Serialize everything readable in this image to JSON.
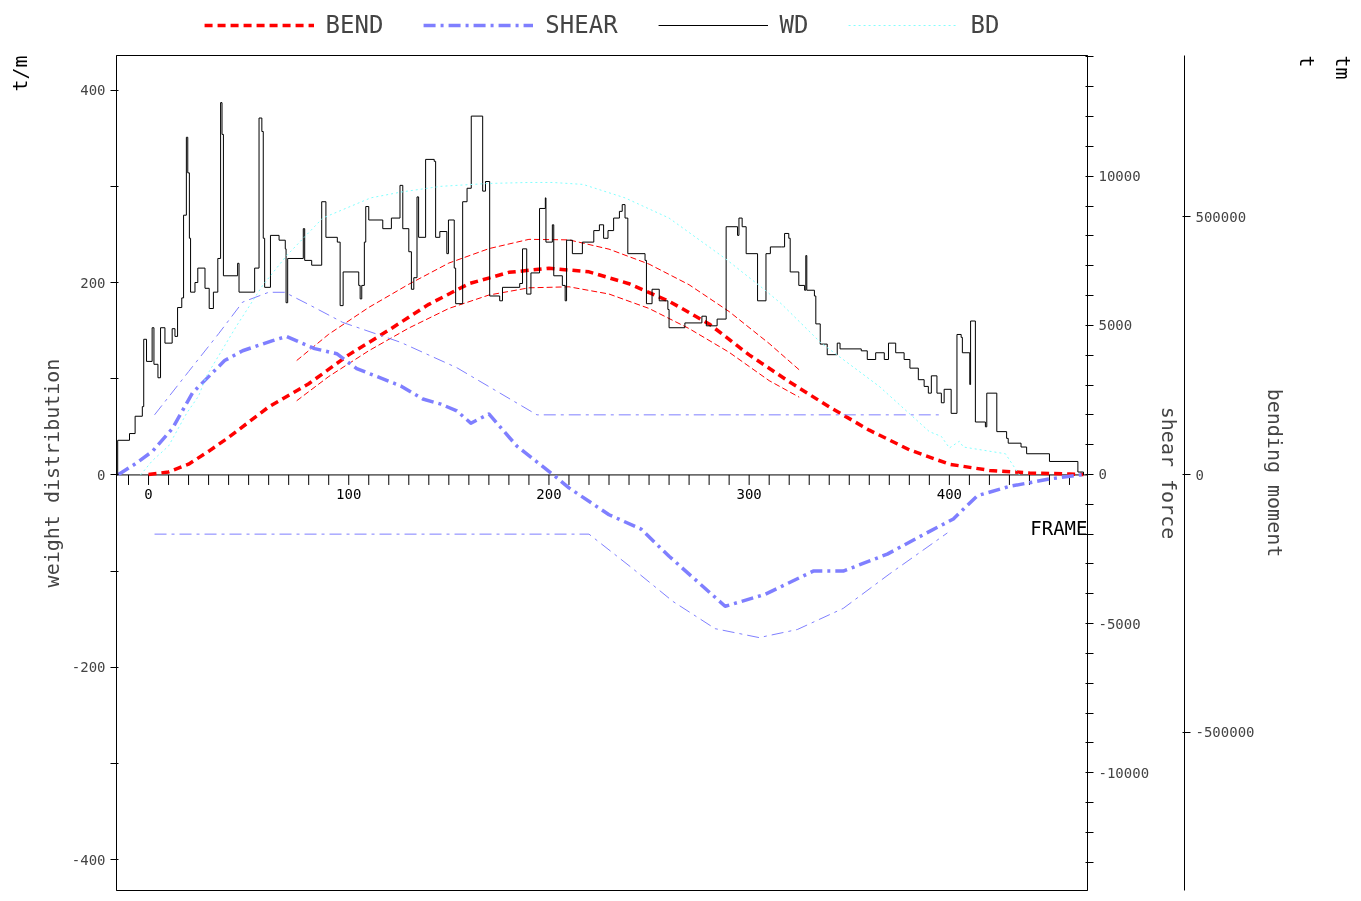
{
  "chart_data": {
    "type": "line",
    "ylabel": "weight distribution",
    "y2label": "shear force",
    "y3label": "bending moment",
    "xlabel": "FRAME",
    "annotations": [
      "t/m",
      "t",
      "tm"
    ],
    "legend": "top",
    "xlim": [
      -16,
      469
    ],
    "ylim": [
      -432,
      436
    ],
    "y2lim": [
      -13950,
      14050
    ],
    "y3lim": [
      -806600,
      812500
    ],
    "xticks": [
      {
        "value": -10,
        "label": null
      },
      0,
      {
        "value": 10,
        "label": null
      },
      {
        "value": 20,
        "label": null
      },
      {
        "value": 30,
        "label": null
      },
      {
        "value": 40,
        "label": null
      },
      {
        "value": 50,
        "label": null
      },
      {
        "value": 60,
        "label": null
      },
      {
        "value": 70,
        "label": null
      },
      {
        "value": 80,
        "label": null
      },
      {
        "value": 90,
        "label": null
      },
      100,
      {
        "value": 110,
        "label": null
      },
      {
        "value": 120,
        "label": null
      },
      {
        "value": 130,
        "label": null
      },
      {
        "value": 140,
        "label": null
      },
      {
        "value": 150,
        "label": null
      },
      {
        "value": 160,
        "label": null
      },
      {
        "value": 170,
        "label": null
      },
      {
        "value": 180,
        "label": null
      },
      {
        "value": 190,
        "label": null
      },
      200,
      {
        "value": 210,
        "label": null
      },
      {
        "value": 220,
        "label": null
      },
      {
        "value": 230,
        "label": null
      },
      {
        "value": 240,
        "label": null
      },
      {
        "value": 250,
        "label": null
      },
      {
        "value": 260,
        "label": null
      },
      {
        "value": 270,
        "label": null
      },
      {
        "value": 280,
        "label": null
      },
      {
        "value": 290,
        "label": null
      },
      300,
      {
        "value": 310,
        "label": null
      },
      {
        "value": 320,
        "label": null
      },
      {
        "value": 330,
        "label": null
      },
      {
        "value": 340,
        "label": null
      },
      {
        "value": 350,
        "label": null
      },
      {
        "value": 360,
        "label": null
      },
      {
        "value": 370,
        "label": null
      },
      {
        "value": 380,
        "label": null
      },
      {
        "value": 390,
        "label": null
      },
      400,
      {
        "value": 410,
        "label": null
      },
      {
        "value": 420,
        "label": null
      },
      {
        "value": 430,
        "label": null
      },
      {
        "value": 440,
        "label": null
      },
      {
        "value": 450,
        "label": null
      },
      {
        "value": 460,
        "label": null
      }
    ],
    "yticks": [
      -400,
      {
        "value": -300,
        "label": null
      },
      -200,
      {
        "value": -100,
        "label": null
      },
      0,
      {
        "value": 100,
        "label": null
      },
      200,
      {
        "value": 300,
        "label": null
      },
      400
    ],
    "y2ticks": [
      {
        "value": -13000,
        "label": null
      },
      {
        "value": -12000,
        "label": null
      },
      {
        "value": -11000,
        "label": null
      },
      -10000,
      {
        "value": -9000,
        "label": null
      },
      {
        "value": -8000,
        "label": null
      },
      {
        "value": -7000,
        "label": null
      },
      {
        "value": -6000,
        "label": null
      },
      -5000,
      {
        "value": -4000,
        "label": null
      },
      {
        "value": -3000,
        "label": null
      },
      {
        "value": -2000,
        "label": null
      },
      {
        "value": -1000,
        "label": null
      },
      0,
      {
        "value": 1000,
        "label": null
      },
      {
        "value": 2000,
        "label": null
      },
      {
        "value": 3000,
        "label": null
      },
      {
        "value": 4000,
        "label": null
      },
      5000,
      {
        "value": 6000,
        "label": null
      },
      {
        "value": 7000,
        "label": null
      },
      {
        "value": 8000,
        "label": null
      },
      {
        "value": 9000,
        "label": null
      },
      10000,
      {
        "value": 11000,
        "label": null
      },
      {
        "value": 12000,
        "label": null
      },
      {
        "value": 13000,
        "label": null
      },
      {
        "value": 14000,
        "label": null
      }
    ],
    "y3ticks": [
      -500000,
      0,
      500000
    ],
    "series": [
      {
        "name": "BEND",
        "color": "#ff0000",
        "axis": "y3",
        "line_style": "dashed",
        "x": [
          0,
          10,
          20,
          30,
          40,
          60,
          80,
          100,
          120,
          140,
          160,
          180,
          200,
          220,
          240,
          260,
          280,
          300,
          320,
          340,
          360,
          380,
          400,
          420,
          440,
          460,
          467
        ],
        "values": [
          0,
          5000,
          20000,
          45000,
          72000,
          131000,
          176000,
          232000,
          280000,
          330000,
          370000,
          392000,
          400000,
          393000,
          370000,
          336000,
          292000,
          232000,
          180000,
          131000,
          86000,
          48000,
          20000,
          8000,
          3000,
          1000,
          0
        ]
      },
      {
        "color": "#ff0000",
        "axis": "y3",
        "line_style": "dashed",
        "x": [
          74,
          90,
          110,
          130,
          150,
          170,
          190,
          210,
          230,
          250,
          270,
          290,
          310,
          325
        ],
        "values": [
          221000,
          272000,
          324000,
          369000,
          410000,
          438000,
          456000,
          455000,
          437000,
          408000,
          368000,
          316000,
          254000,
          203000
        ]
      },
      {
        "color": "#ff0000",
        "axis": "y3",
        "line_style": "dashed",
        "x": [
          74,
          90,
          110,
          130,
          150,
          170,
          190,
          210,
          230,
          250,
          270,
          290,
          310,
          325
        ],
        "values": [
          143000,
          190000,
          240000,
          284000,
          322000,
          348000,
          362000,
          364000,
          350000,
          322000,
          283000,
          237000,
          182000,
          150000
        ]
      },
      {
        "name": "SHEAR",
        "color": "#7f7fff",
        "axis": "y2",
        "line_style": "dashdot",
        "x": [
          -15,
          -7,
          2,
          12,
          22,
          38,
          47,
          62,
          69,
          83,
          94,
          104,
          126,
          137,
          146,
          154,
          161,
          170,
          184,
          202,
          210,
          230,
          246,
          260,
          288,
          308,
          332,
          347,
          369,
          385,
          402,
          414,
          430,
          450,
          467
        ],
        "values": [
          0,
          340,
          780,
          1550,
          2740,
          3820,
          4150,
          4490,
          4630,
          4220,
          4050,
          3550,
          2970,
          2530,
          2360,
          2130,
          1720,
          2030,
          950,
          0,
          -450,
          -1350,
          -1830,
          -2740,
          -4420,
          -4020,
          -3240,
          -3240,
          -2670,
          -2090,
          -1490,
          -710,
          -400,
          -150,
          0
        ]
      },
      {
        "color": "#7f7fff",
        "axis": "y2",
        "line_style": "dashdot",
        "x": [
          3,
          20,
          35,
          47,
          60,
          68,
          80,
          97,
          126,
          154,
          194,
          396
        ],
        "values": [
          2000,
          3450,
          4720,
          5780,
          6110,
          6110,
          5700,
          5100,
          4430,
          3580,
          2000,
          2000
        ]
      },
      {
        "color": "#7f7fff",
        "axis": "y2",
        "line_style": "dashdot",
        "x": [
          3,
          220,
          241,
          262,
          283,
          305,
          324,
          347,
          370,
          399
        ],
        "values": [
          -2000,
          -2000,
          -3110,
          -4260,
          -5170,
          -5470,
          -5200,
          -4490,
          -3340,
          -1960
        ]
      },
      {
        "name": "WD",
        "type": "step",
        "color": "#000000",
        "line_style": "solid",
        "x": [
          -16,
          -15.4,
          -9.5,
          -6.7,
          -3.1,
          -2.4,
          -1,
          1.8,
          2.7,
          4.7,
          6,
          8.2,
          11.8,
          13.2,
          14.5,
          16.6,
          17.5,
          18.9,
          19.6,
          20.4,
          21,
          23.2,
          24.6,
          28.2,
          30.3,
          32.4,
          34.6,
          36,
          36.7,
          37.4,
          44.5,
          45.2,
          53,
          55.2,
          56.6,
          57.3,
          58,
          60.9,
          65.2,
          68.3,
          68.7,
          69.5,
          77.3,
          78,
          81.5,
          86.5,
          88.6,
          94.3,
          95.7,
          97.2,
          105,
          105.7,
          106.5,
          107.8,
          108.5,
          110,
          117,
          121.3,
          125.6,
          127,
          130,
          131.3,
          132.5,
          134.1,
          134.9,
          138.4,
          142.7,
          143.4,
          145.5,
          149,
          149.8,
          152.7,
          153.4,
          156.9,
          159.1,
          161.2,
          166.9,
          168.3,
          170.4,
          175.4,
          176.8,
          185.4,
          186.8,
          188.9,
          191,
          195.3,
          198.2,
          198.5,
          201.7,
          202.4,
          206.7,
          208.1,
          208.8,
          211.7,
          216.7,
          222.4,
          225.2,
          227.3,
          229.5,
          232.3,
          235.2,
          236.6,
          238,
          239.4,
          248,
          248.7,
          251.5,
          255.1,
          259.4,
          260,
          267.9,
          276.4,
          278.6,
          284,
          288.5,
          294.2,
          294.9,
          296.5,
          298.5,
          304.2,
          308.4,
          310.6,
          316.2,
          317.7,
          319.8,
          320.5,
          324.8,
          327.7,
          328.3,
          328.8,
          332.6,
          333.3,
          335.5,
          339,
          344,
          345.4,
          356,
          359,
          363.2,
          367.5,
          369.6,
          373.2,
          377.4,
          380.3,
          384.5,
          387.4,
          389.5,
          391,
          393.8,
          396,
          397.4,
          400.9,
          403.8,
          405.9,
          406.5,
          410.2,
          410.6,
          413,
          418,
          418.7,
          423.7,
          428.6,
          429.4,
          435.8,
          438.6,
          450,
          464.2,
          467
        ],
        "values": [
          0,
          36,
          43,
          61,
          71,
          141,
          118,
          153,
          115,
          101,
          153,
          137,
          152,
          144,
          174,
          184,
          270,
          351,
          314,
          246,
          190,
          200,
          215,
          194,
          173,
          190,
          225,
          387,
          354,
          207,
          220,
          190,
          215,
          371,
          357,
          246,
          195,
          249,
          244,
          235,
          179,
          225,
          256,
          223,
          218,
          284,
          247,
          242,
          176,
          211,
          197,
          183,
          197,
          242,
          279,
          265,
          256,
          267,
          301,
          256,
          232,
          193,
          205,
          289,
          247,
          328,
          326,
          247,
          253,
          230,
          265,
          215,
          178,
          284,
          298,
          373,
          295,
          305,
          186,
          181,
          195,
          199,
          235,
          188,
          210,
          277,
          288,
          242,
          260,
          207,
          197,
          181,
          244,
          230,
          242,
          254,
          260,
          246,
          254,
          267,
          274,
          281,
          267,
          230,
          223,
          178,
          193,
          181,
          172,
          153,
          158,
          165,
          155,
          162,
          258,
          249,
          267,
          258,
          230,
          181,
          230,
          237,
          237,
          251,
          246,
          211,
          197,
          192,
          228,
          192,
          186,
          157,
          136,
          125,
          137,
          131,
          129,
          120,
          127,
          120,
          137,
          127,
          120,
          111,
          99,
          92,
          85,
          103,
          85,
          75,
          89,
          64,
          146,
          143,
          127,
          94,
          160,
          55,
          50,
          85,
          45,
          38,
          33,
          29,
          22,
          14,
          3,
          0
        ]
      },
      {
        "name": "BD",
        "color": "#80ffff",
        "line_style": "dotted",
        "x": [
          -4,
          2,
          10,
          19,
          25,
          29,
          44,
          57,
          69,
          87,
          111,
          126,
          146,
          170,
          190,
          202,
          217,
          238,
          260,
          288,
          308,
          316,
          336,
          365,
          390,
          396,
          400,
          405,
          407,
          428,
          435
        ],
        "values": [
          0,
          15,
          30,
          64,
          82,
          103,
          155,
          197,
          228,
          267,
          288,
          294,
          300,
          303,
          304,
          304,
          302,
          288,
          267,
          225,
          192,
          178,
          137,
          92,
          45,
          40,
          28,
          35,
          29,
          22,
          0
        ]
      }
    ]
  }
}
